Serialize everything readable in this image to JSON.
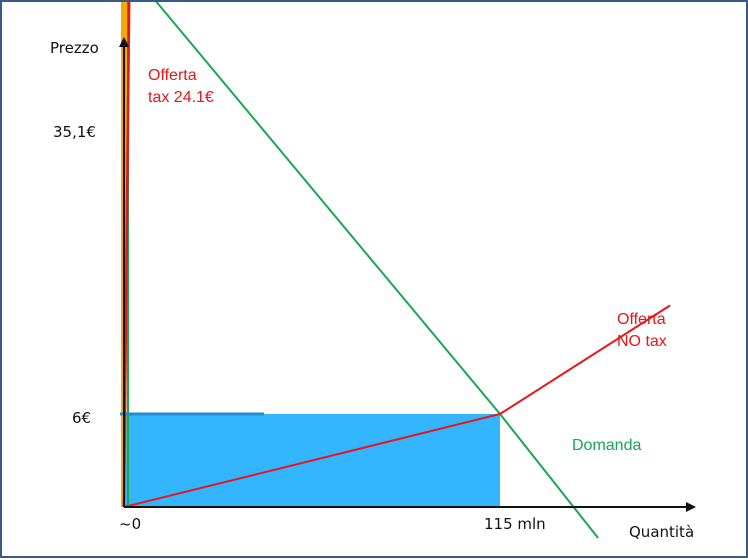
{
  "chart_data": {
    "type": "line",
    "xlabel": "Quantità",
    "ylabel": "Prezzo",
    "x_ticks": [
      "~0",
      "115 mln"
    ],
    "y_ticks": [
      "35,1€",
      "6€"
    ],
    "series": [
      {
        "name": "Domanda",
        "color": "#1aa652",
        "points": [
          [
            0,
            35.1
          ],
          [
            115,
            6
          ],
          [
            145,
            -2
          ]
        ]
      },
      {
        "name": "Offerta NO tax",
        "color": "#e8161b",
        "points": [
          [
            0,
            0
          ],
          [
            115,
            6
          ],
          [
            167,
            13
          ]
        ]
      },
      {
        "name": "Offerta tax 24.1€",
        "color": "#e8161b",
        "points": [
          [
            0,
            0
          ],
          [
            2,
            41
          ]
        ]
      }
    ],
    "shaded_regions": [
      {
        "name": "quantity-price rectangle",
        "color": "#33b5ff",
        "x": [
          0,
          115
        ],
        "y": [
          0,
          6
        ]
      },
      {
        "name": "tax-price sliver",
        "color": "#f2a900",
        "x": [
          0,
          1
        ],
        "y": [
          0,
          35.1
        ]
      }
    ],
    "labels": {
      "offerta_tax_line1": "Offerta",
      "offerta_tax_line2": "tax 24.1€",
      "offerta_notax_line1": "Offerta",
      "offerta_notax_line2": "NO tax",
      "domanda": "Domanda"
    }
  }
}
